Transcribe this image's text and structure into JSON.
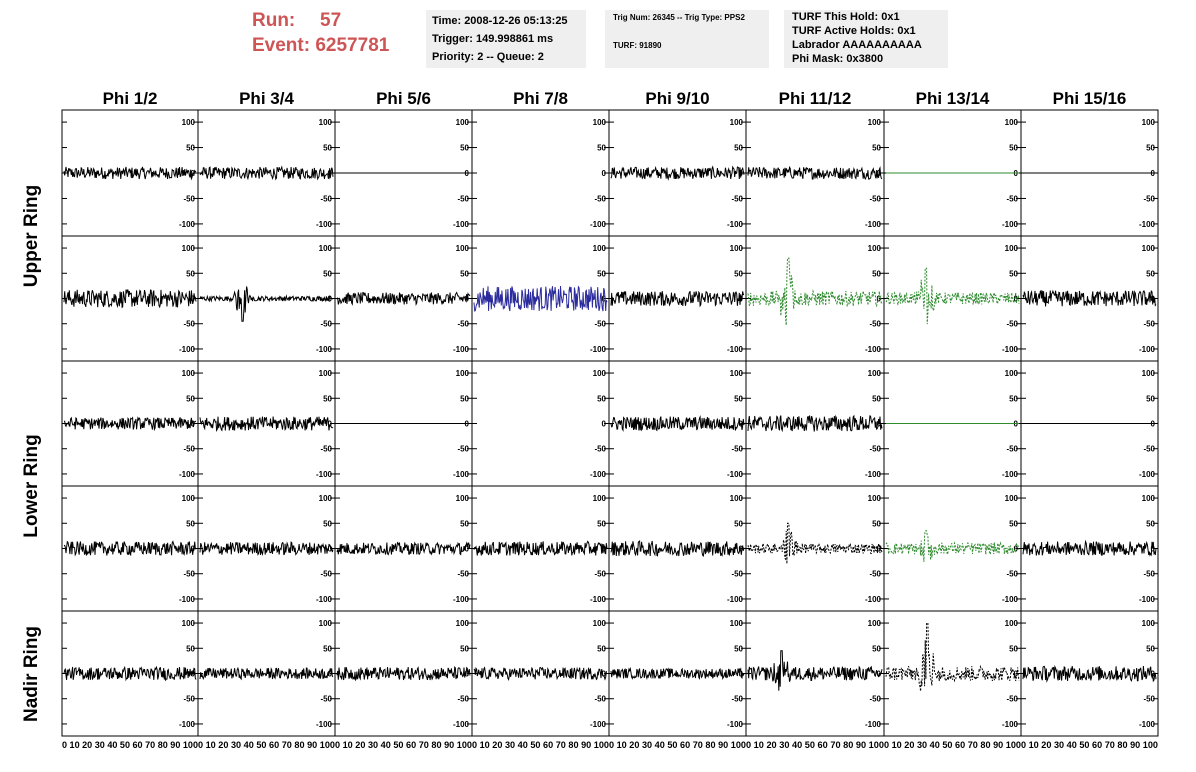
{
  "header": {
    "run_label": "Run:",
    "run_value": "57",
    "event_label": "Event:",
    "event_value": "6257781",
    "time": "Time: 2008-12-26 05:13:25",
    "trigger": "Trigger: 149.998861 ms",
    "priority": "Priority: 2 -- Queue: 2",
    "trig_line": "Trig Num: 26345 -- Trig Type: PPS2",
    "turf": "TURF: 91890",
    "turf_hold": "TURF This Hold: 0x1",
    "turf_active": "TURF Active Holds: 0x1",
    "labrador": "Labrador AAAAAAAAAA",
    "phi_mask": "Phi Mask: 0x3800"
  },
  "chart_data": {
    "type": "line",
    "columns": [
      "Phi 1/2",
      "Phi 3/4",
      "Phi 5/6",
      "Phi 7/8",
      "Phi 9/10",
      "Phi 11/12",
      "Phi 13/14",
      "Phi 15/16"
    ],
    "ring_labels": [
      {
        "label": "Upper Ring"
      },
      {
        "label": "Lower Ring"
      },
      {
        "label": "Nadir Ring"
      }
    ],
    "y_ticks": [
      100,
      50,
      0,
      -50,
      -100
    ],
    "ylim": [
      -110,
      110
    ],
    "xlim": [
      0,
      100
    ],
    "x_tick_label": "0 10 20 30 40 50 60 70 80 90 100",
    "colors": {
      "normal": "#000000",
      "green": "#2e8b2e",
      "blue": "#2b2b9e"
    },
    "rows": [
      [
        {
          "style": "solid",
          "color": "normal",
          "amplitude": 12
        },
        {
          "style": "solid",
          "color": "normal",
          "amplitude": 12
        },
        {
          "style": "flat",
          "color": "normal",
          "amplitude": 0
        },
        {
          "style": "empty"
        },
        {
          "style": "solid",
          "color": "normal",
          "amplitude": 12
        },
        {
          "style": "solid",
          "color": "normal",
          "amplitude": 12
        },
        {
          "style": "flat",
          "color": "green",
          "amplitude": 0
        },
        {
          "style": "flat",
          "color": "normal",
          "amplitude": 0
        }
      ],
      [
        {
          "style": "solid",
          "color": "normal",
          "amplitude": 18
        },
        {
          "style": "solid",
          "color": "normal",
          "amplitude": 5,
          "spike_at": 32,
          "spike_height": -45
        },
        {
          "style": "solid",
          "color": "normal",
          "amplitude": 12
        },
        {
          "style": "solid",
          "color": "blue",
          "amplitude": 25
        },
        {
          "style": "solid",
          "color": "normal",
          "amplitude": 15
        },
        {
          "style": "dashed",
          "color": "green",
          "amplitude": 15,
          "spike_at": 30,
          "spike_height": 80
        },
        {
          "style": "dashed",
          "color": "green",
          "amplitude": 12,
          "spike_at": 30,
          "spike_height": 60
        },
        {
          "style": "solid",
          "color": "normal",
          "amplitude": 16
        }
      ],
      [
        {
          "style": "solid",
          "color": "normal",
          "amplitude": 12
        },
        {
          "style": "solid",
          "color": "normal",
          "amplitude": 14
        },
        {
          "style": "flat",
          "color": "normal",
          "amplitude": 0
        },
        {
          "style": "empty"
        },
        {
          "style": "solid",
          "color": "normal",
          "amplitude": 14
        },
        {
          "style": "solid",
          "color": "normal",
          "amplitude": 16
        },
        {
          "style": "flat",
          "color": "green",
          "amplitude": 0
        },
        {
          "style": "flat",
          "color": "normal",
          "amplitude": 0
        }
      ],
      [
        {
          "style": "solid",
          "color": "normal",
          "amplitude": 14
        },
        {
          "style": "solid",
          "color": "normal",
          "amplitude": 13
        },
        {
          "style": "solid",
          "color": "normal",
          "amplitude": 12
        },
        {
          "style": "solid",
          "color": "normal",
          "amplitude": 14
        },
        {
          "style": "solid",
          "color": "normal",
          "amplitude": 15
        },
        {
          "style": "dashed",
          "color": "normal",
          "amplitude": 10,
          "spike_at": 30,
          "spike_height": 50
        },
        {
          "style": "dashed",
          "color": "green",
          "amplitude": 12,
          "spike_at": 30,
          "spike_height": 35
        },
        {
          "style": "solid",
          "color": "normal",
          "amplitude": 14
        }
      ],
      [
        {
          "style": "solid",
          "color": "normal",
          "amplitude": 13
        },
        {
          "style": "solid",
          "color": "normal",
          "amplitude": 11
        },
        {
          "style": "solid",
          "color": "normal",
          "amplitude": 13
        },
        {
          "style": "solid",
          "color": "normal",
          "amplitude": 12
        },
        {
          "style": "solid",
          "color": "normal",
          "amplitude": 10
        },
        {
          "style": "solid",
          "color": "normal",
          "amplitude": 14,
          "spike_at": 25,
          "spike_height": 45
        },
        {
          "style": "dashed",
          "color": "normal",
          "amplitude": 15,
          "spike_at": 31,
          "spike_height": 100
        },
        {
          "style": "solid",
          "color": "normal",
          "amplitude": 15
        }
      ]
    ]
  }
}
